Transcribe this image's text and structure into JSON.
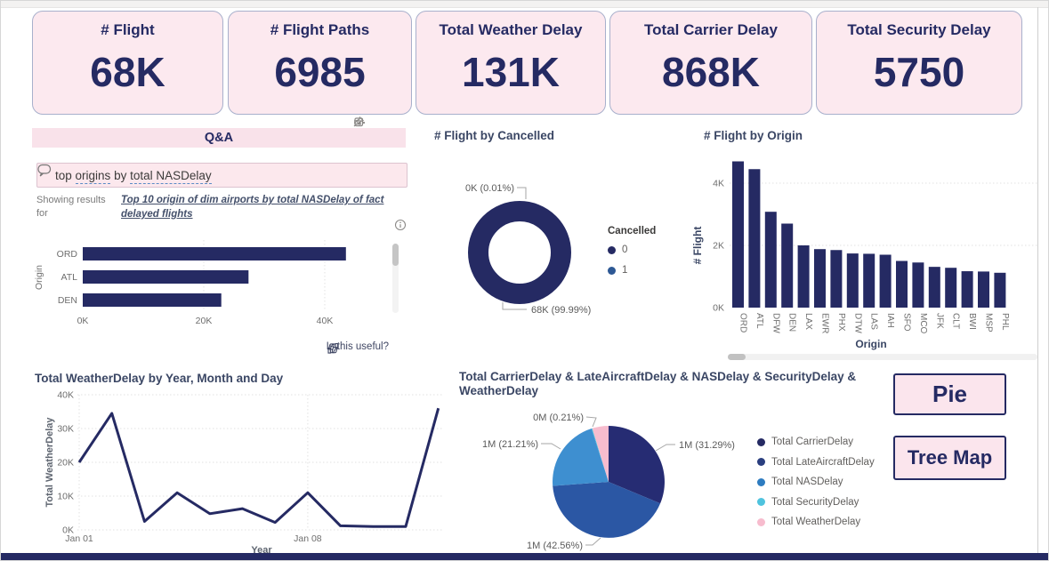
{
  "theme": {
    "navy": "#252A63",
    "card_bg": "#FCE9EF",
    "pink_bar": "#F9E2EA",
    "title_color": "#3A4664",
    "axis_color": "#6E6E6E"
  },
  "kpi_cards": [
    {
      "title": "# Flight",
      "value": "68K"
    },
    {
      "title": "# Flight Paths",
      "value": "6985"
    },
    {
      "title": "Total Weather Delay",
      "value": "131K"
    },
    {
      "title": "Total Carrier Delay",
      "value": "868K"
    },
    {
      "title": "Total Security Delay",
      "value": "5750"
    }
  ],
  "qa": {
    "header": "Q&A",
    "question_prefix": "top ",
    "question_term1": "origins",
    "question_mid": " by ",
    "question_term2": "total NASDelay",
    "showing_label": "Showing results for",
    "result_link": "Top 10 origin of dim airports by total NASDelay of fact delayed flights",
    "useful_prompt": "Is this useful?"
  },
  "buttons": {
    "pie": "Pie",
    "treemap": "Tree Map"
  },
  "chart_data": [
    {
      "id": "qa_top_origins_bar",
      "type": "bar",
      "orientation": "horizontal",
      "categories": [
        "ORD",
        "ATL",
        "DEN"
      ],
      "values": [
        43500,
        27400,
        22900
      ],
      "ylabel": "Origin",
      "xticks": [
        "0K",
        "20K",
        "40K"
      ],
      "xtick_values": [
        0,
        20000,
        40000
      ],
      "xlim": [
        0,
        47000
      ],
      "bar_color": "#252A63",
      "grid": true,
      "note": "Q&A result: top origins by total NASDelay, scrollable list"
    },
    {
      "id": "flight_by_cancelled_donut",
      "type": "pie",
      "subtype": "donut",
      "title": "# Flight by Cancelled",
      "legend_title": "Cancelled",
      "legend_position": "right",
      "slices": [
        {
          "name": "0",
          "pct": 99.99,
          "label": "68K (99.99%)",
          "color": "#252A63"
        },
        {
          "name": "1",
          "pct": 0.01,
          "label": "0K (0.01%)",
          "color": "#2D5894"
        }
      ]
    },
    {
      "id": "flight_by_origin_bar",
      "type": "bar",
      "title": "# Flight by Origin",
      "categories": [
        "ORD",
        "ATL",
        "DFW",
        "DEN",
        "LAX",
        "EWR",
        "PHX",
        "DTW",
        "LAS",
        "IAH",
        "SFO",
        "MCO",
        "JFK",
        "CLT",
        "BWI",
        "MSP",
        "PHL"
      ],
      "values": [
        4700,
        4450,
        3080,
        2700,
        2000,
        1880,
        1850,
        1740,
        1730,
        1700,
        1500,
        1450,
        1310,
        1280,
        1170,
        1160,
        1120
      ],
      "xlabel": "Origin",
      "ylabel": "# Flight",
      "yticks": [
        "0K",
        "2K",
        "4K"
      ],
      "ytick_values": [
        0,
        2000,
        4000
      ],
      "ylim": [
        0,
        4800
      ],
      "bar_color": "#252A63",
      "grid": true
    },
    {
      "id": "weatherdelay_by_day_line",
      "type": "line",
      "title": "Total WeatherDelay by Year, Month and Day",
      "x": [
        "Jan 01",
        "Jan 02",
        "Jan 03",
        "Jan 04",
        "Jan 05",
        "Jan 06",
        "Jan 07",
        "Jan 08",
        "Jan 09",
        "Jan 10",
        "Jan 11",
        "Jan 12"
      ],
      "values": [
        20000,
        34500,
        2500,
        11000,
        4800,
        6300,
        2200,
        11000,
        1200,
        1000,
        1000,
        36000
      ],
      "xticks_shown": [
        "Jan 01",
        "Jan 08"
      ],
      "xtick_indices": [
        0,
        7
      ],
      "xlabel": "Year",
      "ylabel": "Total WeatherDelay",
      "yticks": [
        "0K",
        "10K",
        "20K",
        "30K",
        "40K"
      ],
      "ytick_values": [
        0,
        10000,
        20000,
        30000,
        40000
      ],
      "ylim": [
        0,
        40000
      ],
      "line_color": "#252A63",
      "grid": true
    },
    {
      "id": "total_delays_pie",
      "type": "pie",
      "title": "Total CarrierDelay & LateAircraftDelay & NASDelay & SecurityDelay & WeatherDelay",
      "legend_position": "right",
      "slices": [
        {
          "name": "Total CarrierDelay",
          "pct": 31.29,
          "label": "1M (31.29%)",
          "color": "#262C73",
          "legend_color": "#252A63"
        },
        {
          "name": "Total LateAircraftDelay",
          "pct": 42.56,
          "label": "1M (42.56%)",
          "color": "#2B57A4",
          "legend_color": "#2A3E7F"
        },
        {
          "name": "Total NASDelay",
          "pct": 21.21,
          "label": "1M (21.21%)",
          "color": "#3E8FD0",
          "legend_color": "#2E7CC0"
        },
        {
          "name": "Total SecurityDelay",
          "pct": 0.21,
          "label": "0M (0.21%)",
          "color": "#3FC1DC",
          "legend_color": "#4FC3DE"
        },
        {
          "name": "Total WeatherDelay",
          "pct": 4.73,
          "label": "",
          "color": "#F7BCCE",
          "legend_color": "#F7BCCE"
        }
      ]
    }
  ]
}
